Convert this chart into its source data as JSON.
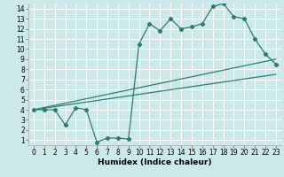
{
  "xlabel": "Humidex (Indice chaleur)",
  "xlim": [
    -0.5,
    23.5
  ],
  "ylim": [
    0.5,
    14.5
  ],
  "xticks": [
    0,
    1,
    2,
    3,
    4,
    5,
    6,
    7,
    8,
    9,
    10,
    11,
    12,
    13,
    14,
    15,
    16,
    17,
    18,
    19,
    20,
    21,
    22,
    23
  ],
  "yticks": [
    1,
    2,
    3,
    4,
    5,
    6,
    7,
    8,
    9,
    10,
    11,
    12,
    13,
    14
  ],
  "bg_color": "#cce8e8",
  "line_color": "#2d7d6e",
  "grid_color": "#ffffff",
  "line1_x": [
    0,
    1,
    2,
    3,
    4,
    5,
    6,
    7,
    8,
    9,
    10,
    11,
    12,
    13,
    14,
    15,
    16,
    17,
    18,
    19,
    20,
    21,
    22,
    23
  ],
  "line1_y": [
    4.0,
    4.0,
    4.0,
    2.5,
    4.2,
    4.0,
    0.8,
    1.2,
    1.2,
    1.1,
    10.5,
    12.5,
    11.8,
    13.0,
    12.0,
    12.2,
    12.5,
    14.2,
    14.5,
    13.2,
    13.0,
    11.0,
    9.5,
    8.5
  ],
  "line2_x": [
    0,
    23
  ],
  "line2_y": [
    4.0,
    7.5
  ],
  "line3_x": [
    0,
    23
  ],
  "line3_y": [
    4.0,
    9.0
  ],
  "fontsize_label": 6.5,
  "fontsize_tick": 5.5
}
